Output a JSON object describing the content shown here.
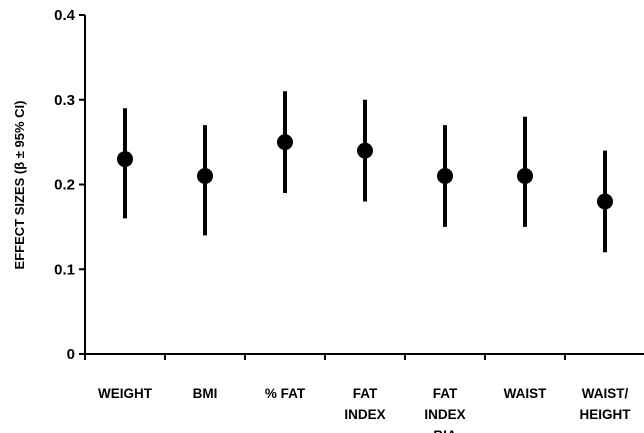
{
  "chart_data": {
    "type": "scatter",
    "ylabel": "EFFECT SIZES (β ± 95% CI)",
    "xlabel": "",
    "title": "",
    "ylim": [
      0,
      0.4
    ],
    "yticks": [
      "0",
      "0.1",
      "0.2",
      "0.3",
      "0.4"
    ],
    "categories": [
      [
        "WEIGHT"
      ],
      [
        "BMI"
      ],
      [
        "% FAT"
      ],
      [
        "FAT",
        "INDEX"
      ],
      [
        "FAT",
        "INDEX",
        "BIA"
      ],
      [
        "WAIST"
      ],
      [
        "WAIST/",
        "HEIGHT"
      ]
    ],
    "values": [
      0.23,
      0.21,
      0.25,
      0.24,
      0.21,
      0.21,
      0.18
    ],
    "ci_lower": [
      0.16,
      0.14,
      0.19,
      0.18,
      0.15,
      0.15,
      0.12
    ],
    "ci_upper": [
      0.29,
      0.27,
      0.31,
      0.3,
      0.27,
      0.28,
      0.24
    ],
    "grid": false,
    "legend": "none",
    "marker_color": "#000000"
  }
}
